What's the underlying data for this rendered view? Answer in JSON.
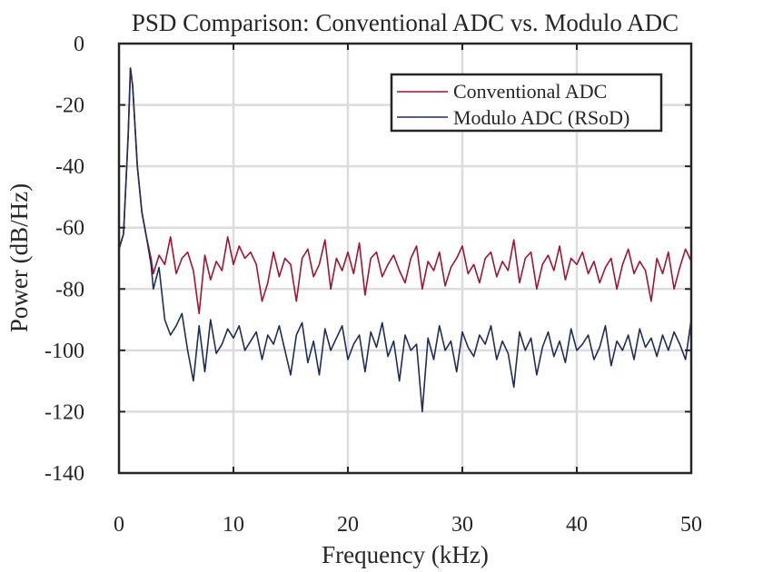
{
  "chart_data": {
    "type": "line",
    "title": "PSD Comparison: Conventional ADC vs. Modulo ADC",
    "xlabel": "Frequency (kHz)",
    "ylabel": "Power (dB/Hz)",
    "xlim": [
      0,
      50
    ],
    "ylim": [
      -140,
      0
    ],
    "xticks": [
      0,
      10,
      20,
      30,
      40,
      50
    ],
    "yticks": [
      0,
      -20,
      -40,
      -60,
      -80,
      -100,
      -120,
      -140
    ],
    "xtick_labels": [
      "0",
      "10",
      "20",
      "30",
      "40",
      "50"
    ],
    "ytick_labels": [
      "0",
      "-20",
      "-40",
      "-60",
      "-80",
      "-100",
      "-120",
      "-140"
    ],
    "grid": true,
    "legend_position": "top-right",
    "series": [
      {
        "name": "Conventional ADC",
        "color": "#a2142f",
        "x": [
          0,
          0.4,
          0.8,
          1.0,
          1.2,
          1.6,
          2.0,
          2.4,
          2.8,
          3.0,
          3.5,
          4.0,
          4.5,
          5.0,
          5.5,
          6.0,
          6.5,
          7.0,
          7.5,
          8.0,
          8.5,
          9.0,
          9.5,
          10.0,
          10.5,
          11.0,
          11.5,
          12.0,
          12.5,
          13.0,
          13.5,
          14.0,
          14.5,
          15.0,
          15.5,
          16.0,
          16.5,
          17.0,
          17.5,
          18.0,
          18.5,
          19.0,
          19.5,
          20.0,
          20.5,
          21.0,
          21.5,
          22.0,
          22.5,
          23.0,
          23.5,
          24.0,
          24.5,
          25.0,
          25.5,
          26.0,
          26.5,
          27.0,
          27.5,
          28.0,
          28.5,
          29.0,
          29.5,
          30.0,
          30.5,
          31.0,
          31.5,
          32.0,
          32.5,
          33.0,
          33.5,
          34.0,
          34.5,
          35.0,
          35.5,
          36.0,
          36.5,
          37.0,
          37.5,
          38.0,
          38.5,
          39.0,
          39.5,
          40.0,
          40.5,
          41.0,
          41.5,
          42.0,
          42.5,
          43.0,
          43.5,
          44.0,
          44.5,
          45.0,
          45.5,
          46.0,
          46.5,
          47.0,
          47.5,
          48.0,
          48.5,
          49.0,
          49.5,
          50.0
        ],
        "y": [
          -67,
          -62,
          -30,
          -8,
          -14,
          -40,
          -55,
          -63,
          -70,
          -75,
          -69,
          -72,
          -63,
          -75,
          -70,
          -68,
          -74,
          -88,
          -69,
          -77,
          -71,
          -74,
          -63,
          -72,
          -66,
          -70,
          -68,
          -72,
          -84,
          -78,
          -68,
          -76,
          -70,
          -72,
          -84,
          -70,
          -67,
          -76,
          -72,
          -64,
          -80,
          -70,
          -74,
          -68,
          -75,
          -65,
          -82,
          -70,
          -68,
          -76,
          -72,
          -69,
          -74,
          -78,
          -70,
          -66,
          -80,
          -71,
          -74,
          -68,
          -79,
          -73,
          -70,
          -66,
          -75,
          -72,
          -78,
          -70,
          -68,
          -76,
          -71,
          -74,
          -64,
          -78,
          -70,
          -68,
          -80,
          -72,
          -69,
          -74,
          -66,
          -77,
          -70,
          -72,
          -68,
          -75,
          -71,
          -78,
          -73,
          -70,
          -80,
          -72,
          -67,
          -75,
          -71,
          -74,
          -84,
          -70,
          -75,
          -68,
          -80,
          -73,
          -67,
          -71
        ]
      },
      {
        "name": "Modulo ADC (RSoD)",
        "color": "#1f2d5a",
        "x": [
          0,
          0.4,
          0.8,
          1.0,
          1.2,
          1.6,
          2.0,
          2.4,
          2.8,
          3.0,
          3.5,
          4.0,
          4.5,
          5.0,
          5.5,
          6.0,
          6.5,
          7.0,
          7.5,
          8.0,
          8.5,
          9.0,
          9.5,
          10.0,
          10.5,
          11.0,
          11.5,
          12.0,
          12.5,
          13.0,
          13.5,
          14.0,
          14.5,
          15.0,
          15.5,
          16.0,
          16.5,
          17.0,
          17.5,
          18.0,
          18.5,
          19.0,
          19.5,
          20.0,
          20.5,
          21.0,
          21.5,
          22.0,
          22.5,
          23.0,
          23.5,
          24.0,
          24.5,
          25.0,
          25.5,
          26.0,
          26.5,
          27.0,
          27.5,
          28.0,
          28.5,
          29.0,
          29.5,
          30.0,
          30.5,
          31.0,
          31.5,
          32.0,
          32.5,
          33.0,
          33.5,
          34.0,
          34.5,
          35.0,
          35.5,
          36.0,
          36.5,
          37.0,
          37.5,
          38.0,
          38.5,
          39.0,
          39.5,
          40.0,
          40.5,
          41.0,
          41.5,
          42.0,
          42.5,
          43.0,
          43.5,
          44.0,
          44.5,
          45.0,
          45.5,
          46.0,
          46.5,
          47.0,
          47.5,
          48.0,
          48.5,
          49.0,
          49.5,
          50.0
        ],
        "y": [
          -67,
          -62,
          -30,
          -8,
          -14,
          -40,
          -55,
          -63,
          -72,
          -80,
          -73,
          -90,
          -95,
          -92,
          -88,
          -100,
          -110,
          -92,
          -107,
          -90,
          -101,
          -98,
          -93,
          -96,
          -92,
          -100,
          -97,
          -94,
          -103,
          -95,
          -98,
          -92,
          -100,
          -108,
          -95,
          -91,
          -104,
          -97,
          -108,
          -93,
          -100,
          -96,
          -92,
          -103,
          -98,
          -95,
          -107,
          -94,
          -99,
          -91,
          -102,
          -97,
          -110,
          -95,
          -100,
          -98,
          -120,
          -96,
          -103,
          -92,
          -100,
          -97,
          -107,
          -94,
          -99,
          -102,
          -95,
          -98,
          -92,
          -103,
          -97,
          -101,
          -112,
          -94,
          -100,
          -96,
          -108,
          -99,
          -94,
          -102,
          -97,
          -104,
          -93,
          -100,
          -98,
          -95,
          -103,
          -99,
          -92,
          -105,
          -97,
          -100,
          -95,
          -103,
          -93,
          -99,
          -96,
          -102,
          -95,
          -100,
          -94,
          -98,
          -103,
          -90
        ]
      }
    ]
  }
}
